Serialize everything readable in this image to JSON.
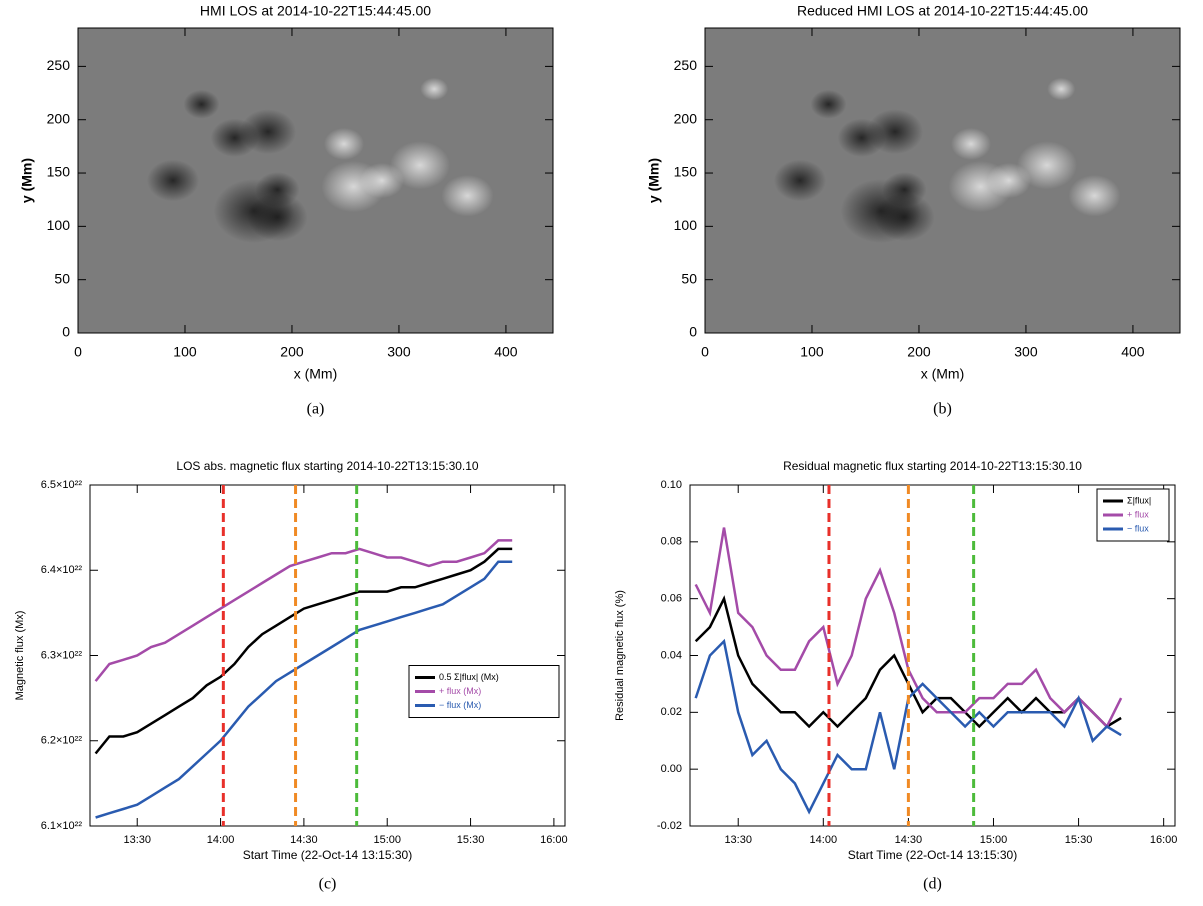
{
  "chart_data": [
    {
      "type": "image",
      "title": "HMI LOS at 2014-10-22T15:44:45.00",
      "xlabel": "x (Mm)",
      "ylabel": "y (Mm)",
      "xlim": [
        0,
        444
      ],
      "ylim": [
        0,
        286
      ],
      "xticks": [
        0,
        100,
        200,
        300,
        400
      ],
      "yticks": [
        0,
        50,
        100,
        150,
        200,
        250
      ],
      "caption": "(a)"
    },
    {
      "type": "image",
      "title": "Reduced HMI LOS at 2014-10-22T15:44:45.00",
      "xlabel": "x (Mm)",
      "ylabel": "y (Mm)",
      "xlim": [
        0,
        444
      ],
      "ylim": [
        0,
        286
      ],
      "xticks": [
        0,
        100,
        200,
        300,
        400
      ],
      "yticks": [
        0,
        50,
        100,
        150,
        200,
        250
      ],
      "caption": "(b)"
    },
    {
      "type": "line",
      "title": "LOS abs. magnetic flux starting 2014-10-22T13:15:30.10",
      "xlabel": "Start Time (22-Oct-14 13:15:30)",
      "ylabel": "Magnetic flux (Mx)",
      "xlim": [
        "13:13",
        "16:04"
      ],
      "xticks": [
        "13:30",
        "14:00",
        "14:30",
        "15:00",
        "15:30",
        "16:00"
      ],
      "ylim": [
        6.1e+22,
        6.5e+22
      ],
      "yticks": [
        {
          "value": 6.1e+22,
          "label": "6.1×10²²"
        },
        {
          "value": 6.2e+22,
          "label": "6.2×10²²"
        },
        {
          "value": 6.3e+22,
          "label": "6.3×10²²"
        },
        {
          "value": 6.4e+22,
          "label": "6.4×10²²"
        },
        {
          "value": 6.5e+22,
          "label": "6.5×10²²"
        }
      ],
      "legend": "center right",
      "x": [
        "13:15",
        "13:20",
        "13:25",
        "13:30",
        "13:35",
        "13:40",
        "13:45",
        "13:50",
        "13:55",
        "14:00",
        "14:05",
        "14:10",
        "14:15",
        "14:20",
        "14:25",
        "14:30",
        "14:35",
        "14:40",
        "14:45",
        "14:50",
        "14:55",
        "15:00",
        "15:05",
        "15:10",
        "15:15",
        "15:20",
        "15:25",
        "15:30",
        "15:35",
        "15:40",
        "15:45"
      ],
      "series": [
        {
          "name": "0.5 Σ|flux| (Mx)",
          "color": "#000000",
          "values": [
            6.185e+22,
            6.205e+22,
            6.205e+22,
            6.21e+22,
            6.22e+22,
            6.23e+22,
            6.24e+22,
            6.25e+22,
            6.265e+22,
            6.275e+22,
            6.29e+22,
            6.31e+22,
            6.325e+22,
            6.335e+22,
            6.345e+22,
            6.355e+22,
            6.36e+22,
            6.365e+22,
            6.37e+22,
            6.375e+22,
            6.375e+22,
            6.375e+22,
            6.38e+22,
            6.38e+22,
            6.385e+22,
            6.39e+22,
            6.395e+22,
            6.4e+22,
            6.41e+22,
            6.425e+22,
            6.425e+22
          ]
        },
        {
          "name": "+ flux (Mx)",
          "color": "#a44ba8",
          "values": [
            6.27e+22,
            6.29e+22,
            6.295e+22,
            6.3e+22,
            6.31e+22,
            6.315e+22,
            6.325e+22,
            6.335e+22,
            6.345e+22,
            6.355e+22,
            6.365e+22,
            6.375e+22,
            6.385e+22,
            6.395e+22,
            6.405e+22,
            6.41e+22,
            6.415e+22,
            6.42e+22,
            6.42e+22,
            6.425e+22,
            6.42e+22,
            6.415e+22,
            6.415e+22,
            6.41e+22,
            6.405e+22,
            6.41e+22,
            6.41e+22,
            6.415e+22,
            6.42e+22,
            6.435e+22,
            6.435e+22
          ]
        },
        {
          "name": "− flux (Mx)",
          "color": "#2a5bb0",
          "values": [
            6.11e+22,
            6.115e+22,
            6.12e+22,
            6.125e+22,
            6.135e+22,
            6.145e+22,
            6.155e+22,
            6.17e+22,
            6.185e+22,
            6.2e+22,
            6.22e+22,
            6.24e+22,
            6.255e+22,
            6.27e+22,
            6.28e+22,
            6.29e+22,
            6.3e+22,
            6.31e+22,
            6.32e+22,
            6.33e+22,
            6.335e+22,
            6.34e+22,
            6.345e+22,
            6.35e+22,
            6.355e+22,
            6.36e+22,
            6.37e+22,
            6.38e+22,
            6.39e+22,
            6.41e+22,
            6.41e+22
          ]
        }
      ],
      "vlines": [
        {
          "x": "14:01",
          "color": "#e8302a"
        },
        {
          "x": "14:27",
          "color": "#f08a24"
        },
        {
          "x": "14:49",
          "color": "#4cbb3a"
        }
      ],
      "caption": "(c)"
    },
    {
      "type": "line",
      "title": "Residual magnetic flux starting 2014-10-22T13:15:30.10",
      "xlabel": "Start Time (22-Oct-14 13:15:30)",
      "ylabel": "Residual magnetic flux (%)",
      "xlim": [
        "13:13",
        "16:04"
      ],
      "xticks": [
        "13:30",
        "14:00",
        "14:30",
        "15:00",
        "15:30",
        "16:00"
      ],
      "ylim": [
        -0.02,
        0.1
      ],
      "yticks": [
        -0.02,
        {
          "value": 0,
          "label": "0.00"
        },
        0.02,
        0.04,
        0.06,
        0.08,
        {
          "value": 0.1,
          "label": "0.10"
        }
      ],
      "legend": "upper right",
      "x": [
        "13:15",
        "13:20",
        "13:25",
        "13:30",
        "13:35",
        "13:40",
        "13:45",
        "13:50",
        "13:55",
        "14:00",
        "14:05",
        "14:10",
        "14:15",
        "14:20",
        "14:25",
        "14:30",
        "14:35",
        "14:40",
        "14:45",
        "14:50",
        "14:55",
        "15:00",
        "15:05",
        "15:10",
        "15:15",
        "15:20",
        "15:25",
        "15:30",
        "15:35",
        "15:40",
        "15:45"
      ],
      "series": [
        {
          "name": "Σ|flux|",
          "color": "#000000",
          "values": [
            0.045,
            0.05,
            0.06,
            0.04,
            0.03,
            0.025,
            0.02,
            0.02,
            0.015,
            0.02,
            0.015,
            0.02,
            0.025,
            0.035,
            0.04,
            0.03,
            0.02,
            0.025,
            0.025,
            0.02,
            0.015,
            0.02,
            0.025,
            0.02,
            0.025,
            0.02,
            0.02,
            0.025,
            0.02,
            0.015,
            0.018
          ]
        },
        {
          "name": "+ flux",
          "color": "#a44ba8",
          "values": [
            0.065,
            0.055,
            0.085,
            0.055,
            0.05,
            0.04,
            0.035,
            0.035,
            0.045,
            0.05,
            0.03,
            0.04,
            0.06,
            0.07,
            0.055,
            0.035,
            0.025,
            0.02,
            0.02,
            0.02,
            0.025,
            0.025,
            0.03,
            0.03,
            0.035,
            0.025,
            0.02,
            0.025,
            0.02,
            0.015,
            0.025
          ]
        },
        {
          "name": "− flux",
          "color": "#2a5bb0",
          "values": [
            0.025,
            0.04,
            0.045,
            0.02,
            0.005,
            0.01,
            0,
            -0.005,
            -0.015,
            -0.005,
            0.005,
            0,
            0,
            0.02,
            0,
            0.025,
            0.03,
            0.025,
            0.02,
            0.015,
            0.02,
            0.015,
            0.02,
            0.02,
            0.02,
            0.02,
            0.015,
            0.025,
            0.01,
            0.015,
            0.012
          ]
        }
      ],
      "vlines": [
        {
          "x": "14:02",
          "color": "#e8302a"
        },
        {
          "x": "14:30",
          "color": "#f08a24"
        },
        {
          "x": "14:53",
          "color": "#4cbb3a"
        }
      ],
      "caption": "(d)"
    }
  ]
}
